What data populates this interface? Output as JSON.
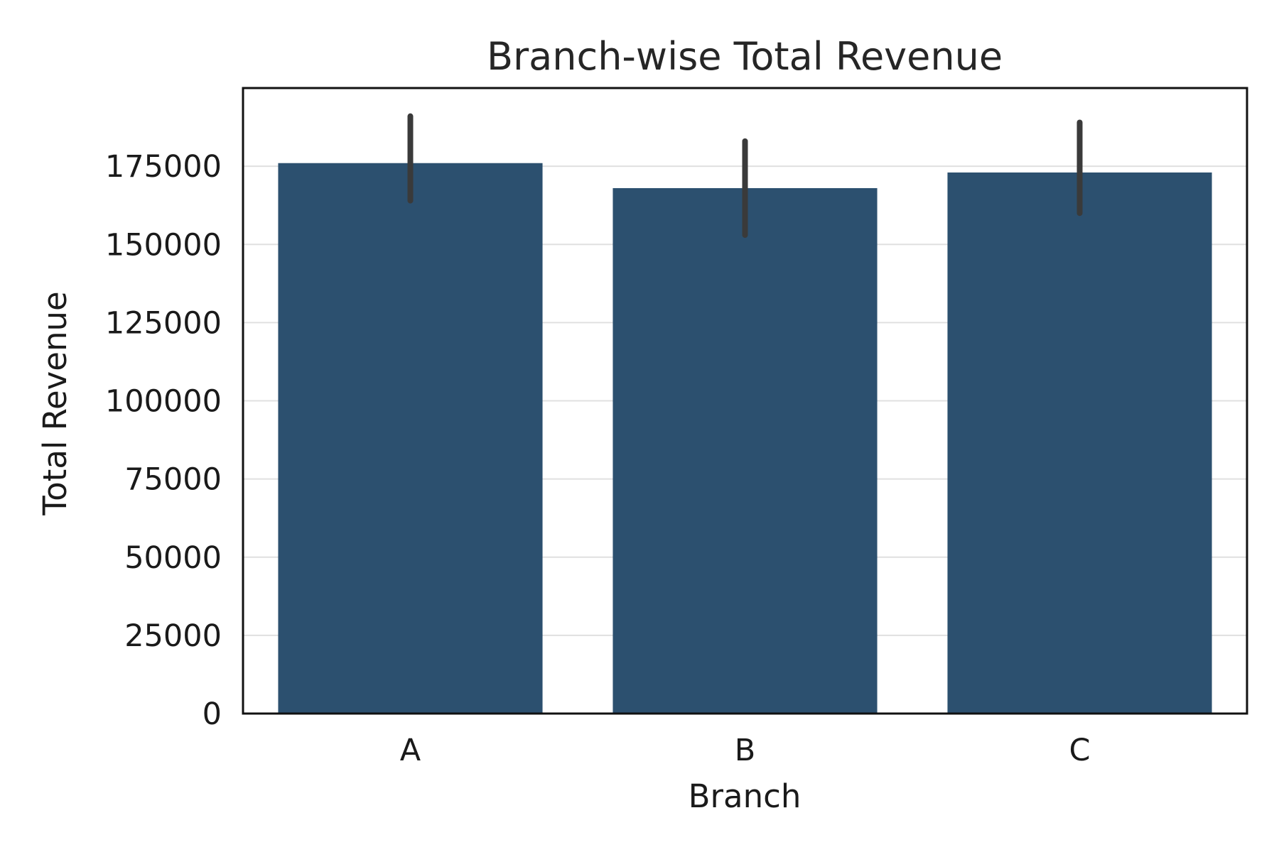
{
  "chart_data": {
    "type": "bar",
    "title": "Branch-wise Total Revenue",
    "xlabel": "Branch",
    "ylabel": "Total Revenue",
    "categories": [
      "A",
      "B",
      "C"
    ],
    "values": [
      176000,
      168000,
      173000
    ],
    "error_bars": [
      {
        "low": 164000,
        "high": 191000
      },
      {
        "low": 153000,
        "high": 183000
      },
      {
        "low": 160000,
        "high": 189000
      }
    ],
    "yticks": [
      0,
      25000,
      50000,
      75000,
      100000,
      125000,
      150000,
      175000
    ],
    "ytick_labels": [
      "0",
      "25000",
      "50000",
      "75000",
      "100000",
      "125000",
      "150000",
      "175000"
    ],
    "ylim": [
      0,
      200000
    ],
    "grid": "horizontal",
    "colors": {
      "bar": "#2c506f",
      "error_bar": "#3a3a3a",
      "grid": "#e0e0e0",
      "frame": "#111111"
    }
  }
}
